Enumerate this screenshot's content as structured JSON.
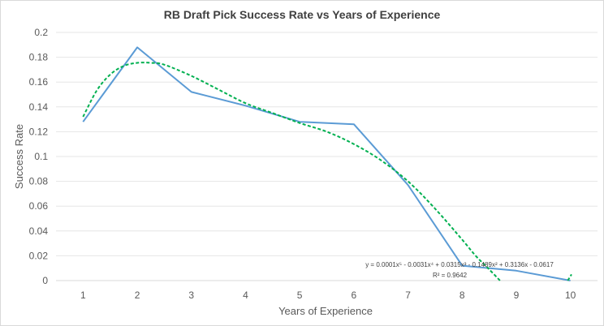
{
  "chart_data": {
    "type": "line",
    "title": "RB Draft Pick Success Rate vs Years of Experience",
    "xlabel": "Years of Experience",
    "ylabel": "Success Rate",
    "x": [
      1,
      2,
      3,
      4,
      5,
      6,
      7,
      8,
      9,
      10
    ],
    "xlim": [
      0.5,
      10.5
    ],
    "ylim": [
      0,
      0.2
    ],
    "yticks": [
      "0",
      "0.02",
      "0.04",
      "0.06",
      "0.08",
      "0.1",
      "0.12",
      "0.14",
      "0.16",
      "0.18",
      "0.2"
    ],
    "xticks": [
      "1",
      "2",
      "3",
      "4",
      "5",
      "6",
      "7",
      "8",
      "9",
      "10"
    ],
    "grid": true,
    "legend": "none",
    "series": [
      {
        "values": [
          0.128,
          0.188,
          0.152,
          0.141,
          0.128,
          0.126,
          0.077,
          0.012,
          0.008,
          0.0
        ],
        "color": "#5b9bd5"
      },
      {
        "trendline": "polynomial-5",
        "color": "#00b050",
        "x": [
          1,
          1.25,
          1.5,
          1.75,
          2,
          2.25,
          2.5,
          3,
          3.5,
          4,
          4.5,
          5,
          5.5,
          6,
          6.5,
          7,
          7.5,
          8,
          8.25,
          8.5,
          8.7
        ],
        "values": [
          0.132,
          0.153,
          0.166,
          0.173,
          0.1755,
          0.1755,
          0.174,
          0.165,
          0.154,
          0.143,
          0.135,
          0.127,
          0.12,
          0.11,
          0.097,
          0.08,
          0.058,
          0.033,
          0.02,
          0.009,
          0.0
        ],
        "tail_x": [
          9.95,
          10.02
        ],
        "tail_values": [
          0.0,
          0.005
        ]
      }
    ],
    "annotations": {
      "equation": "y = 0.0001x⁵ - 0.0031x⁴ + 0.0315x³ - 0.1489x² + 0.3136x - 0.0617",
      "r_squared": "R² = 0.9642"
    }
  }
}
